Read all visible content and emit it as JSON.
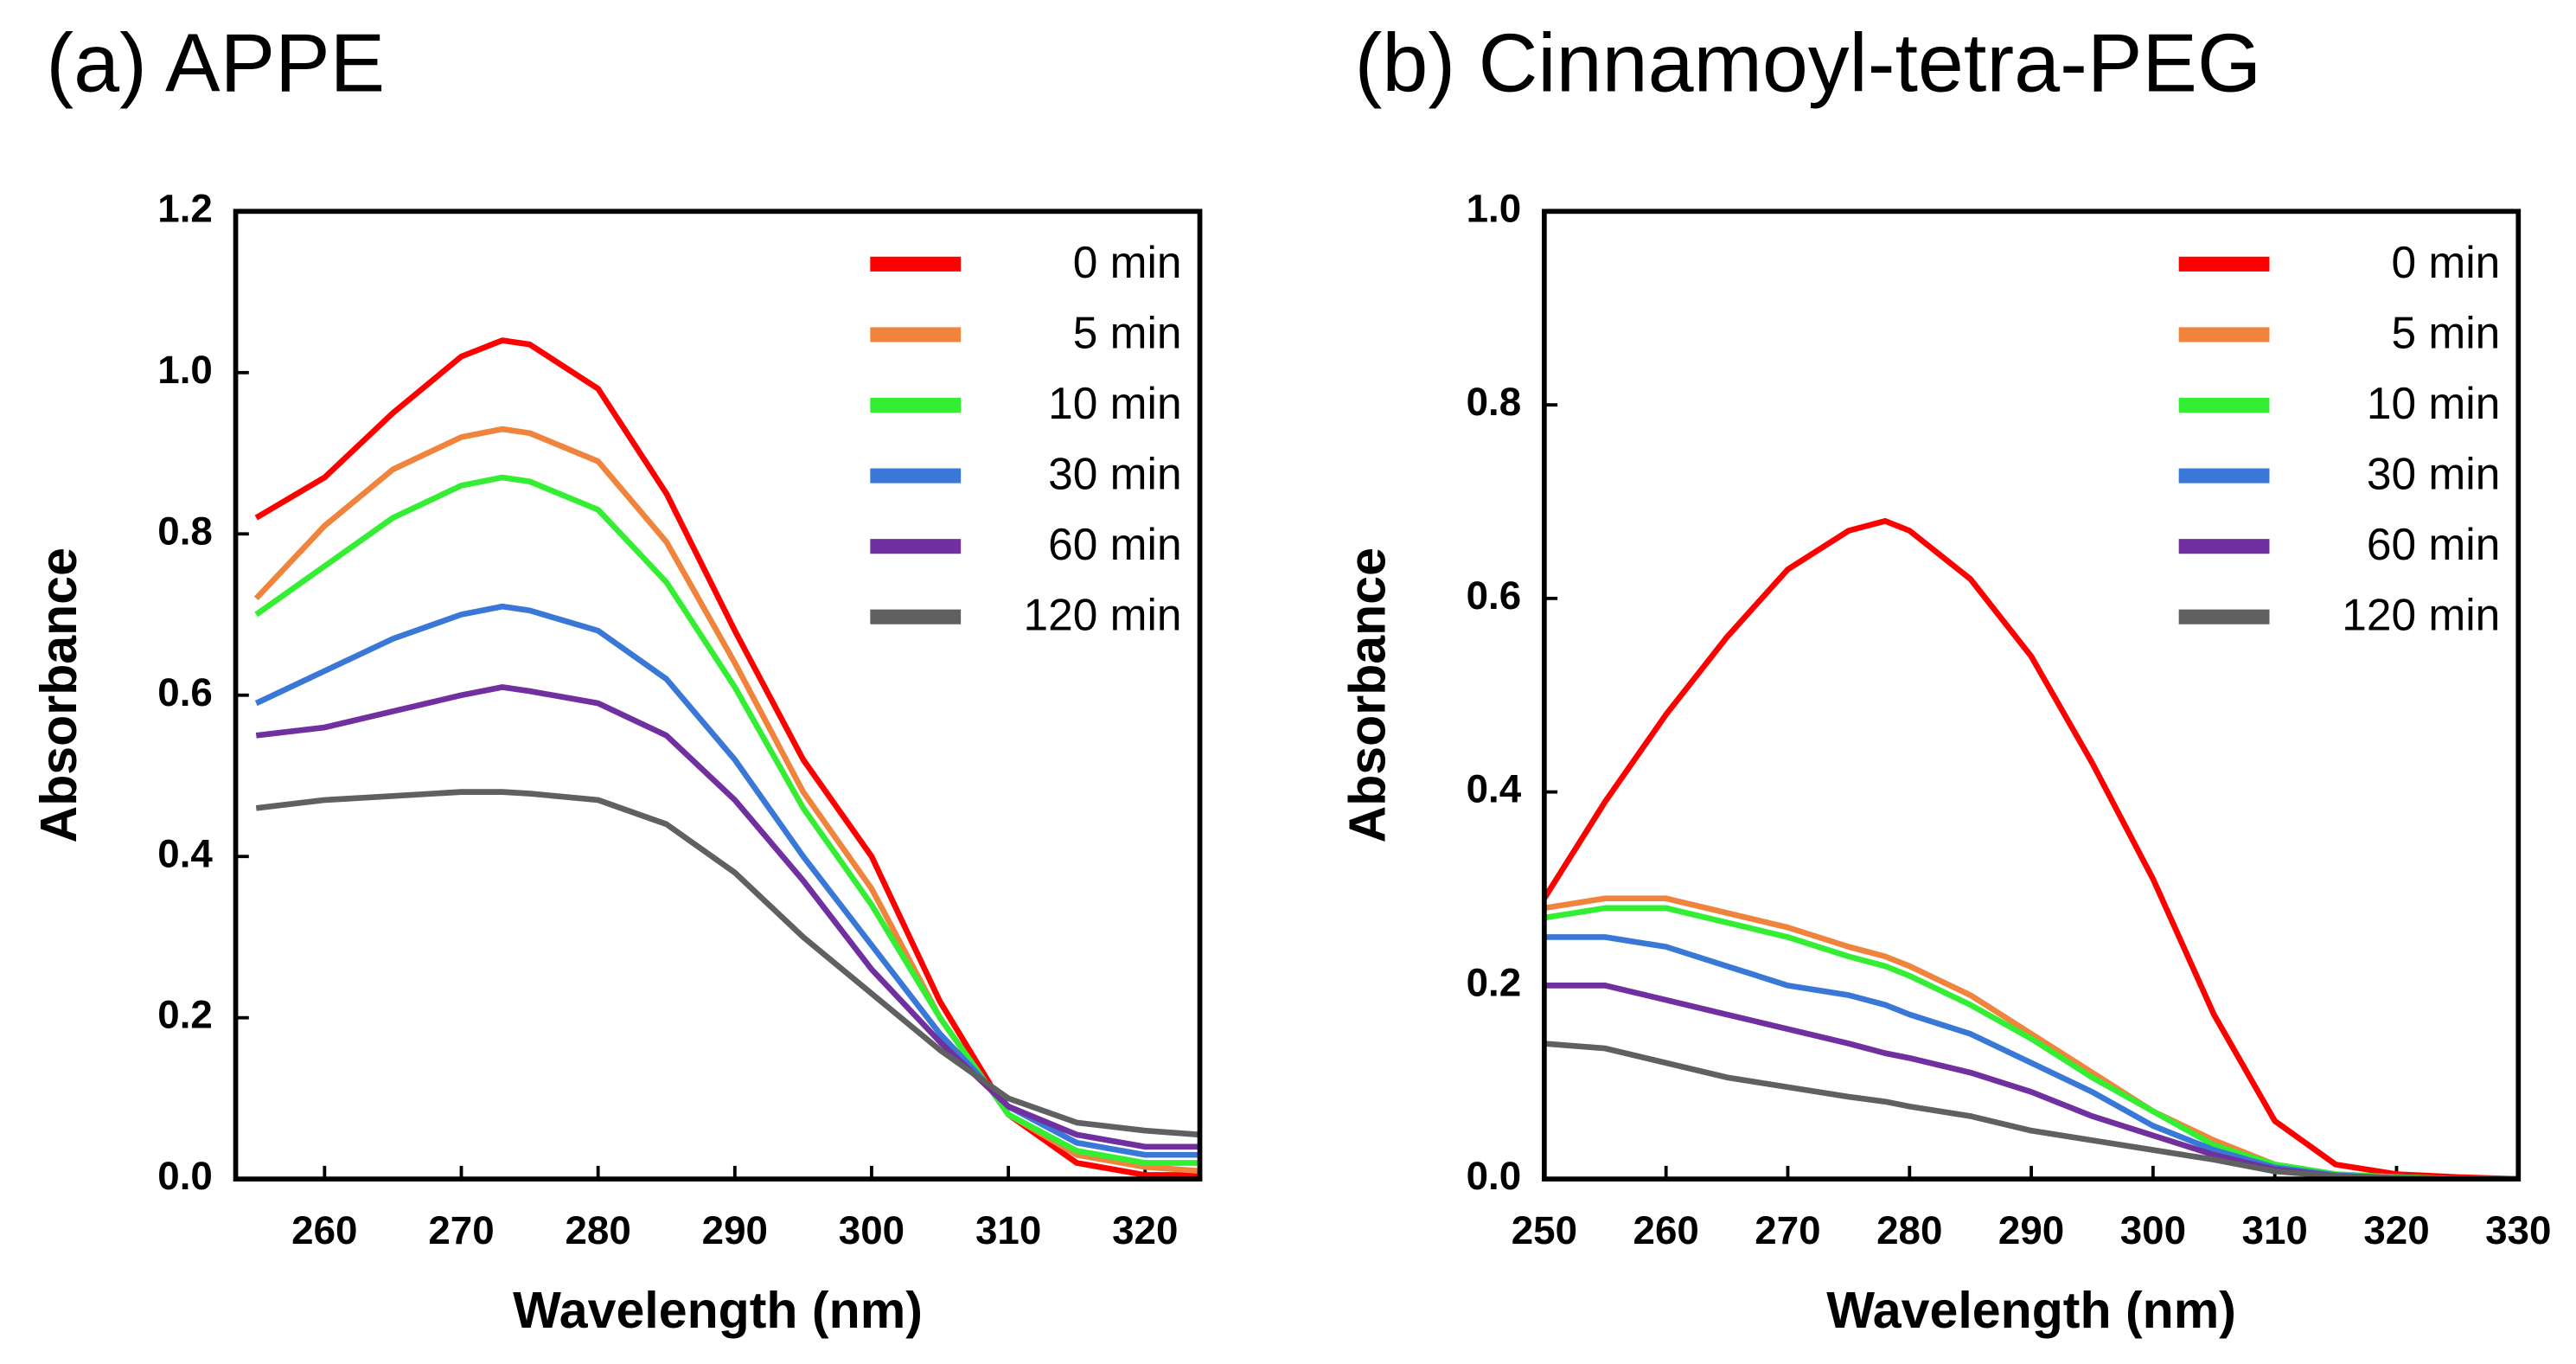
{
  "chart_data": [
    {
      "type": "line",
      "title": "(a) APPE",
      "x_label": "Wavelength (nm)",
      "y_label": "Absorbance",
      "x": [
        255,
        260,
        265,
        270,
        273,
        275,
        280,
        285,
        290,
        295,
        300,
        305,
        310,
        315,
        320,
        324
      ],
      "series": [
        {
          "name": "0 min",
          "color": "#ff0000",
          "values": [
            0.82,
            0.87,
            0.95,
            1.02,
            1.04,
            1.035,
            0.98,
            0.85,
            0.68,
            0.52,
            0.4,
            0.22,
            0.08,
            0.02,
            0.005,
            0.005
          ]
        },
        {
          "name": "5 min",
          "color": "#f0843c",
          "values": [
            0.72,
            0.81,
            0.88,
            0.92,
            0.93,
            0.925,
            0.89,
            0.79,
            0.64,
            0.48,
            0.36,
            0.2,
            0.08,
            0.03,
            0.015,
            0.01
          ]
        },
        {
          "name": "10 min",
          "color": "#33ee33",
          "values": [
            0.7,
            0.76,
            0.82,
            0.86,
            0.87,
            0.865,
            0.83,
            0.74,
            0.61,
            0.46,
            0.34,
            0.2,
            0.08,
            0.035,
            0.02,
            0.02
          ]
        },
        {
          "name": "30 min",
          "color": "#3a78d8",
          "values": [
            0.59,
            0.63,
            0.67,
            0.7,
            0.71,
            0.705,
            0.68,
            0.62,
            0.52,
            0.4,
            0.29,
            0.18,
            0.09,
            0.045,
            0.03,
            0.03
          ]
        },
        {
          "name": "60 min",
          "color": "#7030a0",
          "values": [
            0.55,
            0.56,
            0.58,
            0.6,
            0.61,
            0.605,
            0.59,
            0.55,
            0.47,
            0.37,
            0.26,
            0.17,
            0.09,
            0.055,
            0.04,
            0.04
          ]
        },
        {
          "name": "120 min",
          "color": "#606060",
          "values": [
            0.46,
            0.47,
            0.475,
            0.48,
            0.48,
            0.478,
            0.47,
            0.44,
            0.38,
            0.3,
            0.23,
            0.16,
            0.1,
            0.07,
            0.06,
            0.055
          ]
        }
      ],
      "xlim": [
        253.5,
        324
      ],
      "xticks": [
        260,
        270,
        280,
        290,
        300,
        310,
        320
      ],
      "ylim": [
        0,
        1.2
      ],
      "yticks": [
        {
          "value": 0,
          "label": "0.0"
        },
        {
          "value": 0.2,
          "label": "0.2"
        },
        {
          "value": 0.4,
          "label": "0.4"
        },
        {
          "value": 0.6,
          "label": "0.6"
        },
        {
          "value": 0.8,
          "label": "0.8"
        },
        {
          "value": 1,
          "label": "1.0"
        },
        {
          "value": 1.2,
          "label": "1.2"
        }
      ],
      "legend": "upper right"
    },
    {
      "type": "line",
      "title": "(b) Cinnamoyl-tetra-PEG",
      "x_label": "Wavelength (nm)",
      "y_label": "Absorbance",
      "x": [
        250,
        255,
        260,
        265,
        270,
        275,
        278,
        280,
        285,
        290,
        295,
        300,
        305,
        310,
        315,
        320,
        325,
        330
      ],
      "series": [
        {
          "name": "0 min",
          "color": "#ff0000",
          "values": [
            0.29,
            0.39,
            0.48,
            0.56,
            0.63,
            0.67,
            0.68,
            0.67,
            0.62,
            0.54,
            0.43,
            0.31,
            0.17,
            0.06,
            0.015,
            0.005,
            0.002,
            0
          ]
        },
        {
          "name": "5 min",
          "color": "#f0843c",
          "values": [
            0.28,
            0.29,
            0.29,
            0.275,
            0.26,
            0.24,
            0.23,
            0.22,
            0.19,
            0.15,
            0.11,
            0.07,
            0.04,
            0.015,
            0.005,
            0.002,
            0,
            0
          ]
        },
        {
          "name": "10 min",
          "color": "#33ee33",
          "values": [
            0.27,
            0.28,
            0.28,
            0.265,
            0.25,
            0.23,
            0.22,
            0.21,
            0.18,
            0.145,
            0.105,
            0.07,
            0.035,
            0.015,
            0.005,
            0.002,
            0,
            0
          ]
        },
        {
          "name": "30 min",
          "color": "#3a78d8",
          "values": [
            0.25,
            0.25,
            0.24,
            0.22,
            0.2,
            0.19,
            0.18,
            0.17,
            0.15,
            0.12,
            0.09,
            0.055,
            0.03,
            0.012,
            0.004,
            0.001,
            0,
            0
          ]
        },
        {
          "name": "60 min",
          "color": "#7030a0",
          "values": [
            0.2,
            0.2,
            0.185,
            0.17,
            0.155,
            0.14,
            0.13,
            0.125,
            0.11,
            0.09,
            0.065,
            0.045,
            0.025,
            0.01,
            0.003,
            0.001,
            0,
            0
          ]
        },
        {
          "name": "120 min",
          "color": "#606060",
          "values": [
            0.14,
            0.135,
            0.12,
            0.105,
            0.095,
            0.085,
            0.08,
            0.075,
            0.065,
            0.05,
            0.04,
            0.03,
            0.02,
            0.008,
            0.003,
            0.001,
            0,
            0
          ]
        }
      ],
      "xlim": [
        250,
        330
      ],
      "xticks": [
        250,
        260,
        270,
        280,
        290,
        300,
        310,
        320,
        330
      ],
      "ylim": [
        0,
        1
      ],
      "yticks": [
        {
          "value": 0,
          "label": "0.0"
        },
        {
          "value": 0.2,
          "label": "0.2"
        },
        {
          "value": 0.4,
          "label": "0.4"
        },
        {
          "value": 0.6,
          "label": "0.6"
        },
        {
          "value": 0.8,
          "label": "0.8"
        },
        {
          "value": 1,
          "label": "1.0"
        }
      ],
      "legend": "upper right"
    }
  ]
}
